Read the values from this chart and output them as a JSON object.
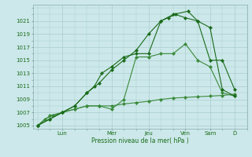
{
  "title": "",
  "xlabel": "Pression niveau de la mer( hPa )",
  "bg_color": "#cce8ea",
  "grid_color": "#aacccc",
  "line_color_dark": "#1a6b1a",
  "line_color_mid": "#3a8a3a",
  "ylim": [
    1004.5,
    1023.5
  ],
  "yticks": [
    1005,
    1007,
    1009,
    1011,
    1013,
    1015,
    1017,
    1019,
    1021
  ],
  "day_labels": [
    "Lun",
    "Mer",
    "Jeu",
    "Ven",
    "Sam",
    "D"
  ],
  "day_positions": [
    1.0,
    3.0,
    4.5,
    6.0,
    7.0,
    8.0
  ],
  "xlim": [
    -0.2,
    8.5
  ],
  "series1_x": [
    0,
    0.3,
    0.6,
    1.0,
    1.5,
    2.0,
    2.5,
    3.0,
    3.5,
    4.0,
    4.5,
    5.0,
    5.5,
    6.0,
    6.5,
    7.0,
    7.5,
    8.0
  ],
  "series1_y": [
    1005,
    1006,
    1006.5,
    1007,
    1007.5,
    1008,
    1008,
    1008,
    1008.3,
    1008.5,
    1008.7,
    1009,
    1009.2,
    1009.3,
    1009.4,
    1009.5,
    1009.6,
    1009.8
  ],
  "series2_x": [
    0,
    0.5,
    1.0,
    1.5,
    2.0,
    2.5,
    3.0,
    3.5,
    4.0,
    4.5,
    5.0,
    5.5,
    6.0,
    6.5,
    7.0,
    7.5,
    8.0
  ],
  "series2_y": [
    1005,
    1006.5,
    1007,
    1007.5,
    1008,
    1008,
    1007.5,
    1009,
    1015.5,
    1015.5,
    1016,
    1016,
    1017.5,
    1015,
    1014,
    1010,
    1009.5
  ],
  "series3_x": [
    0,
    0.5,
    1.0,
    1.5,
    2.0,
    2.3,
    2.6,
    3.0,
    3.5,
    4.0,
    4.5,
    5.0,
    5.3,
    5.6,
    6.0,
    6.5,
    7.0,
    7.5,
    8.0
  ],
  "series3_y": [
    1005,
    1006,
    1007,
    1008,
    1010,
    1011,
    1013,
    1014,
    1015.5,
    1016,
    1016,
    1021,
    1021.5,
    1022,
    1021.5,
    1021,
    1015,
    1015,
    1010.5
  ],
  "series4_x": [
    0,
    0.5,
    1.0,
    1.5,
    2.0,
    2.5,
    3.0,
    3.5,
    4.0,
    4.5,
    5.0,
    5.5,
    6.1,
    6.5,
    7.0,
    7.5,
    8.0
  ],
  "series4_y": [
    1005,
    1006,
    1007,
    1008,
    1010,
    1011.5,
    1013.5,
    1015,
    1016.5,
    1019,
    1021,
    1022,
    1022.5,
    1021,
    1020,
    1010.5,
    1009.5
  ]
}
